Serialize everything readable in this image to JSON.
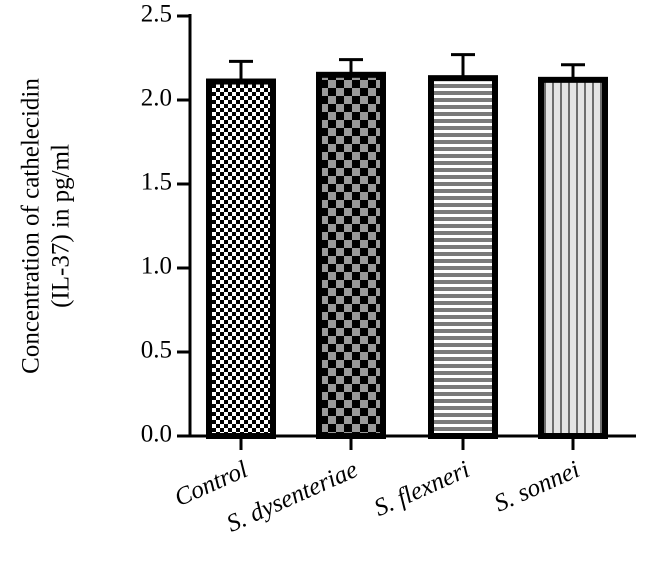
{
  "chart_data": {
    "type": "bar",
    "title": "",
    "xlabel": "",
    "ylabel_lines": [
      "Concentration of cathelecidin",
      "(IL-37) in pg/ml"
    ],
    "categories": [
      "Control",
      "S. dysenteriae",
      "S. flexneri",
      "S. sonnei"
    ],
    "values": [
      2.11,
      2.15,
      2.13,
      2.12
    ],
    "errors": [
      0.12,
      0.09,
      0.14,
      0.09
    ],
    "ylim": [
      0,
      2.5
    ],
    "yticks": [
      "0.0",
      "0.5",
      "1.0",
      "1.5",
      "2.0",
      "2.5"
    ],
    "patterns": [
      "fine-checker",
      "coarse-checker",
      "horizontal-stripes",
      "vertical-stripes"
    ],
    "bar_edge_color": "#000000",
    "grid": false,
    "legend": "none"
  }
}
